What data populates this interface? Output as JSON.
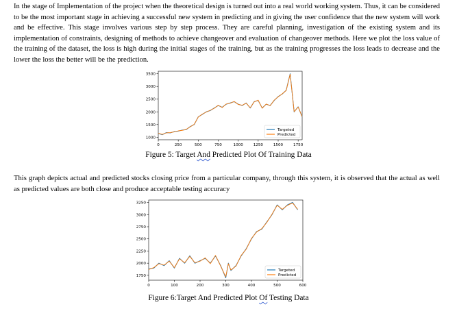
{
  "paragraph1": "In the stage of Implementation of the project when the theoretical design is turned out into a real world working system. Thus, it can be considered to be the most important stage in achieving a successful new system in predicting and in giving the user confidence that the new system will work and be effective. This stage involves various step by step process. They are careful planning, investigation of the existing system and its implementation of constraints, designing of methods to achieve changeover and evaluation of changeover methods. Here we plot the loss value of the training of the dataset, the loss is high during the initial stages of the training, but as the training progresses the loss leads to decrease and the lower the loss the better will be the prediction.",
  "figure5": {
    "caption_before": "Figure 5: Target ",
    "caption_marked": "And",
    "caption_after": " Predicted Plot Of Training Data"
  },
  "paragraph2": "This graph depicts actual and predicted stocks closing price from a particular company, through this system, it is observed that the actual as well as predicted values are both close and produce acceptable testing accuracy",
  "figure6": {
    "caption_before": "Figure 6:Target And Predicted Plot ",
    "caption_marked": "Of",
    "caption_after": " Testing Data"
  },
  "colors": {
    "targeted": "#1f77b4",
    "predicted": "#ff7f0e"
  },
  "chart_data": [
    {
      "type": "line",
      "title": "",
      "xlabel": "",
      "ylabel": "",
      "xlim": [
        0,
        1800
      ],
      "ylim": [
        900,
        3600
      ],
      "xticks": [
        0,
        250,
        500,
        750,
        1000,
        1250,
        1500,
        1750
      ],
      "yticks": [
        1000,
        1500,
        2000,
        2500,
        3000,
        3500
      ],
      "grid": false,
      "legend": "bottom-right",
      "x": [
        0,
        50,
        100,
        150,
        200,
        250,
        300,
        350,
        400,
        450,
        500,
        550,
        600,
        650,
        700,
        750,
        800,
        850,
        900,
        950,
        1000,
        1050,
        1100,
        1150,
        1200,
        1250,
        1300,
        1350,
        1400,
        1450,
        1500,
        1550,
        1600,
        1650,
        1700,
        1750,
        1800
      ],
      "series": [
        {
          "name": "Targeted",
          "values": [
            1150,
            1100,
            1180,
            1170,
            1220,
            1240,
            1280,
            1300,
            1420,
            1500,
            1800,
            1900,
            2000,
            2050,
            2150,
            2250,
            2180,
            2300,
            2350,
            2400,
            2300,
            2250,
            2350,
            2150,
            2400,
            2450,
            2150,
            2300,
            2250,
            2450,
            2600,
            2700,
            2850,
            3500,
            2000,
            2200,
            1800
          ]
        },
        {
          "name": "Predicted",
          "values": [
            1160,
            1110,
            1170,
            1180,
            1210,
            1250,
            1270,
            1310,
            1410,
            1510,
            1790,
            1910,
            1990,
            2060,
            2140,
            2260,
            2170,
            2310,
            2340,
            2410,
            2290,
            2260,
            2340,
            2160,
            2390,
            2460,
            2140,
            2310,
            2240,
            2460,
            2590,
            2710,
            2840,
            3480,
            2010,
            2190,
            1810
          ]
        }
      ]
    },
    {
      "type": "line",
      "title": "",
      "xlabel": "",
      "ylabel": "",
      "xlim": [
        0,
        600
      ],
      "ylim": [
        1650,
        3300
      ],
      "xticks": [
        0,
        100,
        200,
        300,
        400,
        500,
        600
      ],
      "yticks": [
        1750,
        2000,
        2250,
        2500,
        2750,
        3000,
        3250
      ],
      "grid": false,
      "legend": "bottom-right",
      "x": [
        0,
        20,
        40,
        60,
        80,
        100,
        120,
        140,
        160,
        180,
        200,
        220,
        240,
        260,
        280,
        300,
        310,
        320,
        340,
        360,
        380,
        400,
        420,
        440,
        460,
        480,
        500,
        520,
        540,
        560,
        580
      ],
      "series": [
        {
          "name": "Targeted",
          "values": [
            1880,
            1900,
            2000,
            1950,
            2050,
            1900,
            2100,
            2000,
            2150,
            2000,
            2050,
            2100,
            2000,
            2150,
            1950,
            1700,
            2000,
            1850,
            1950,
            2150,
            2300,
            2500,
            2650,
            2700,
            2850,
            3000,
            3200,
            3100,
            3200,
            3250,
            3100
          ]
        },
        {
          "name": "Predicted",
          "values": [
            1870,
            1910,
            1990,
            1960,
            2040,
            1910,
            2090,
            2010,
            2140,
            2010,
            2040,
            2110,
            1990,
            2160,
            1940,
            1720,
            1990,
            1860,
            1940,
            2160,
            2290,
            2510,
            2640,
            2710,
            2840,
            3010,
            3190,
            3110,
            3190,
            3240,
            3110
          ]
        }
      ]
    }
  ]
}
